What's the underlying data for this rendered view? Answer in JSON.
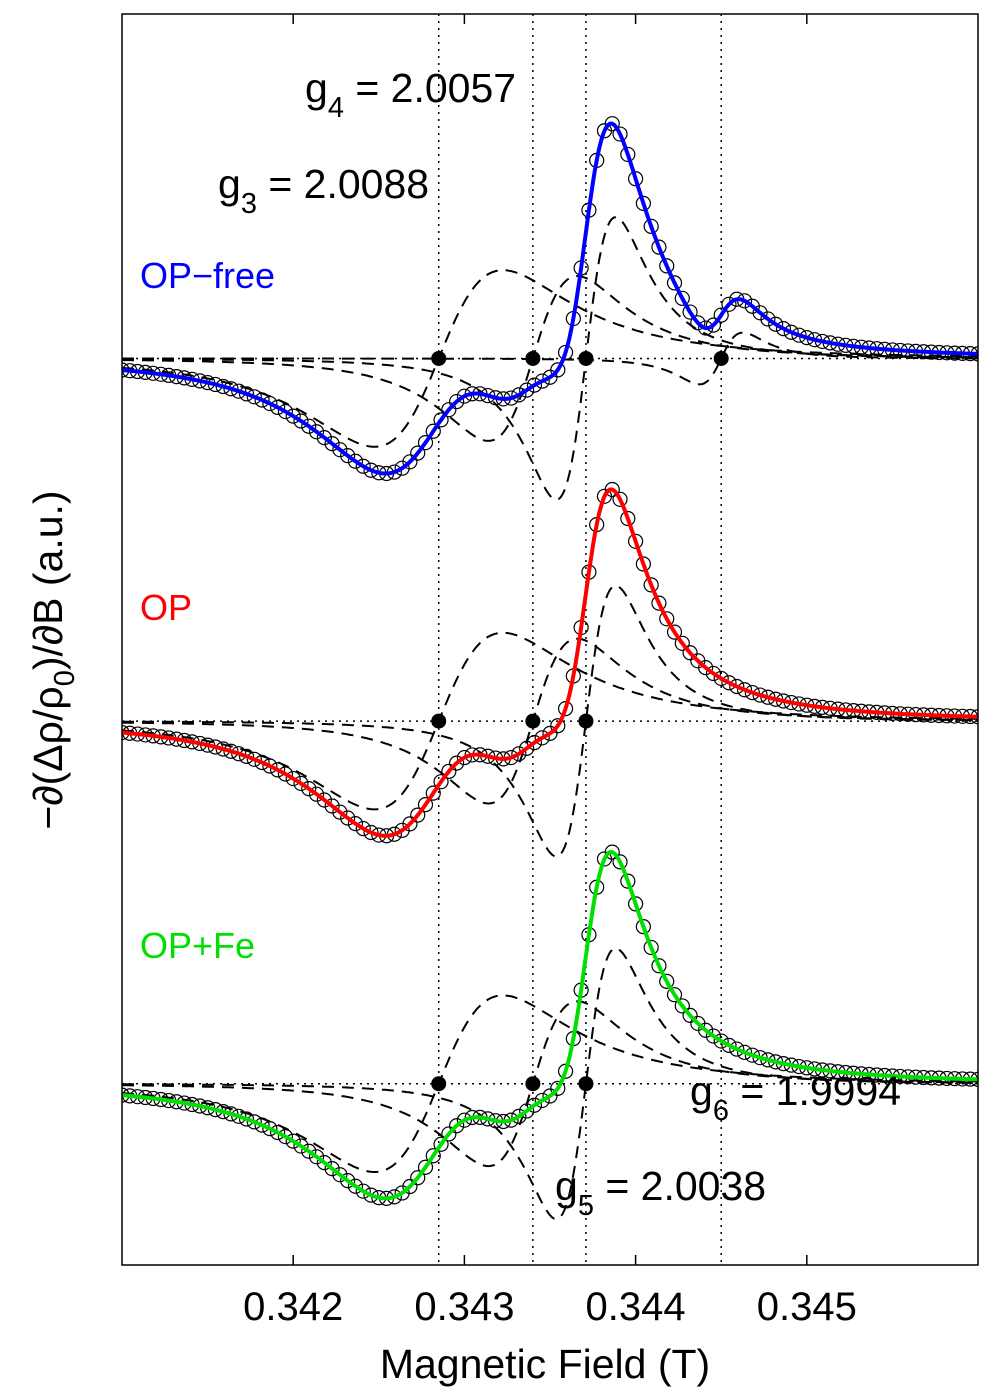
{
  "chart_data": {
    "type": "line",
    "title": "",
    "xlabel": "Magnetic Field (T)",
    "ylabel_parts": {
      "prefix": "−∂(Δρ/ρ",
      "sub": "0",
      "suffix": ")/∂B (a.u.)"
    },
    "xlim": [
      0.341,
      0.346
    ],
    "ylim": [
      -3.0,
      3.9
    ],
    "xticks": [
      {
        "value": 0.342,
        "label": "0.342"
      },
      {
        "value": 0.343,
        "label": "0.343"
      },
      {
        "value": 0.344,
        "label": "0.344"
      },
      {
        "value": 0.345,
        "label": "0.345"
      }
    ],
    "g_markers": [
      {
        "field": 0.34285,
        "name": "g3"
      },
      {
        "field": 0.3434,
        "name": "g4"
      },
      {
        "field": 0.34371,
        "name": "g5"
      },
      {
        "field": 0.3445,
        "name": "g6"
      }
    ],
    "g_labels": [
      {
        "g": "g",
        "sub": "4",
        "value": " = 2.0057"
      },
      {
        "g": "g",
        "sub": "3",
        "value": " = 2.0088"
      },
      {
        "g": "g",
        "sub": "6",
        "value": " = 1.9994"
      },
      {
        "g": "g",
        "sub": "5",
        "value": " = 2.0038"
      }
    ],
    "series": [
      {
        "name": "OP−free",
        "color": "#0000ff",
        "baseline": 2.0,
        "marker_fields": [
          0.34285,
          0.3434,
          0.34371,
          0.3445
        ],
        "components": [
          {
            "center": 0.34285,
            "amp": 0.75,
            "width": 0.00065
          },
          {
            "center": 0.3434,
            "amp": 0.7,
            "width": 0.00045
          },
          {
            "center": 0.34371,
            "amp": 1.2,
            "width": 0.0003
          },
          {
            "center": 0.3445,
            "amp": 0.22,
            "width": 0.00022
          }
        ]
      },
      {
        "name": "OP",
        "color": "#ff0000",
        "baseline": 0.0,
        "marker_fields": [
          0.34285,
          0.3434,
          0.34371
        ],
        "components": [
          {
            "center": 0.34285,
            "amp": 0.75,
            "width": 0.00065
          },
          {
            "center": 0.3434,
            "amp": 0.7,
            "width": 0.00045
          },
          {
            "center": 0.34371,
            "amp": 1.15,
            "width": 0.0003
          }
        ]
      },
      {
        "name": "OP+Fe",
        "color": "#00e000",
        "baseline": -2.0,
        "marker_fields": [
          0.34285,
          0.3434,
          0.34371
        ],
        "components": [
          {
            "center": 0.34285,
            "amp": 0.75,
            "width": 0.00065
          },
          {
            "center": 0.3434,
            "amp": 0.7,
            "width": 0.00045
          },
          {
            "center": 0.34371,
            "amp": 1.15,
            "width": 0.0003
          }
        ]
      }
    ]
  }
}
